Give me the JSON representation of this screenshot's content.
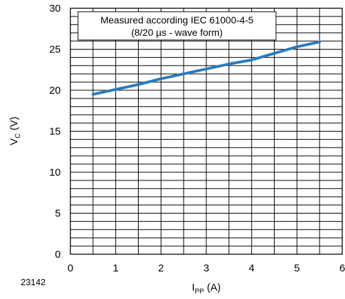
{
  "chart_data": {
    "type": "line",
    "title": "",
    "xlabel": {
      "main": "I",
      "sub": "PP",
      "unit": " (A)"
    },
    "ylabel": {
      "main": "V",
      "sub": "C",
      "unit": " (V)"
    },
    "xlim": [
      0,
      6
    ],
    "ylim": [
      0,
      30
    ],
    "xticks": [
      0,
      1,
      2,
      3,
      4,
      5,
      6
    ],
    "yticks": [
      0,
      5,
      10,
      15,
      20,
      25,
      30
    ],
    "grid": true,
    "annotation": [
      "Measured according IEC 61000-4-5",
      "(8/20 µs - wave form)"
    ],
    "figure_number": "23142",
    "series": [
      {
        "color": "#2a7bbd",
        "x": [
          0.5,
          1.0,
          1.5,
          2.0,
          2.5,
          3.0,
          3.5,
          4.0,
          4.5,
          5.0,
          5.5
        ],
        "y": [
          19.5,
          20.1,
          20.7,
          21.4,
          22.0,
          22.6,
          23.2,
          23.7,
          24.5,
          25.3,
          25.9
        ]
      }
    ]
  }
}
